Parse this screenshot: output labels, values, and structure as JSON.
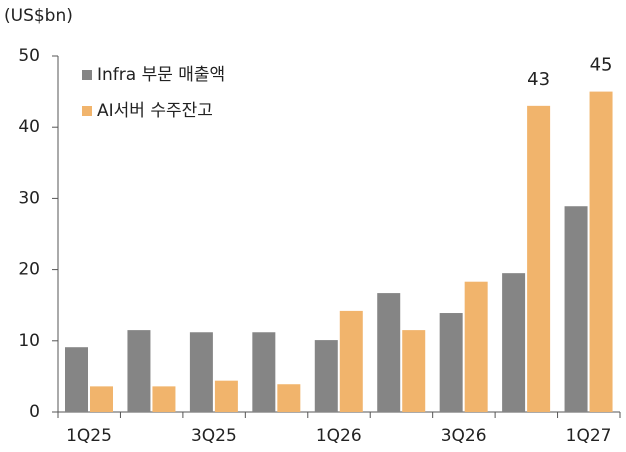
{
  "chart_data": {
    "type": "bar",
    "y_label": "(US$bn)",
    "categories": [
      "1Q25",
      null,
      "3Q25",
      null,
      "1Q26",
      null,
      "3Q26",
      null,
      "1Q27"
    ],
    "series": [
      {
        "name": "Infra 부문 매출액",
        "color": "#858585",
        "values": [
          9.1,
          11.5,
          11.2,
          11.2,
          10.1,
          16.7,
          13.9,
          19.5,
          28.9
        ]
      },
      {
        "name": "AI서버 수주잔고",
        "color": "#f1b46c",
        "values": [
          3.6,
          3.6,
          4.4,
          3.9,
          14.2,
          11.5,
          18.3,
          43,
          45
        ],
        "value_labels": [
          null,
          null,
          null,
          null,
          null,
          null,
          null,
          "43",
          "45"
        ]
      }
    ],
    "ylim": [
      0,
      50
    ],
    "yticks": [
      0,
      10,
      20,
      30,
      40,
      50
    ],
    "grid": false,
    "legend": "upper left"
  }
}
